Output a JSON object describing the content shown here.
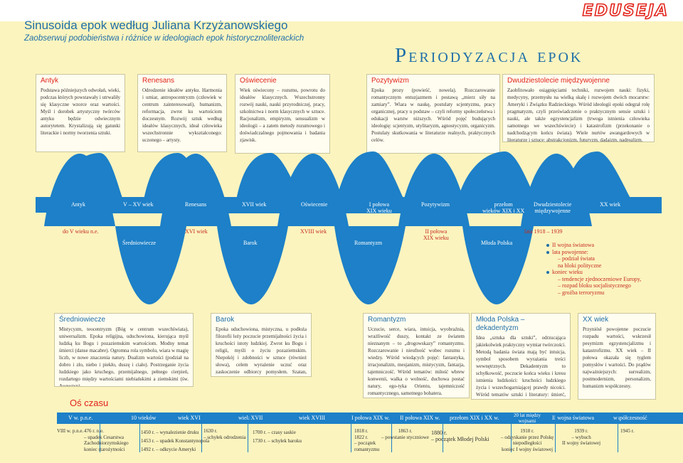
{
  "logo": {
    "text": "EDUSEJA"
  },
  "header": {
    "title": "Sinusoida epok według Juliana Krzyżanowskiego",
    "subtitle": "Zaobserwuj podobieństwa i różnice w ideologiach epok historycznoliterackich",
    "big_title": "Periodyzacja epok"
  },
  "top_boxes": [
    {
      "title": "Antyk",
      "text": "Podstawa późniejszych odwołań, wieki, podczas których powstawały i utrwaliły się klasyczne wzorce oraz wartości. Myśl i dorobek artystyczny twórców antyku będzie odwiecznym autorytetem. Krystalizują się gatunki literackie i normy tworzenia sztuki."
    },
    {
      "title": "Renesans",
      "text": "Odrodzenie ideałów antyku. Harmonia i umiar, antropocentryzm (człowiek w centrum zainteresowań), humanizm, reformacja, zwrot ku wartościom doczesnym. Rozwój sztuk według ideałów klasycznych, ideał człowieka wszechstronnie wykształconego: uczonego – artysty."
    },
    {
      "title": "Oświecenie",
      "text": "Wiek oświecony – rozumu, powrotu do ideałów klasycznych. Wszechstronny rozwój nauki, nauki przyrodniczej, pracy, szkolnictwa i norm klasycznych w sztuce. Racjonalizm, empiryzm, sensualizm w ideologii – a zatem metody rozumowego i doświadczalnego pojmowania i badania zjawisk."
    },
    {
      "title": "Pozytywizm",
      "text": "Epoka prozy (powieść, nowela). Rozczarowanie romantycznym entuzjazmem i postawą „mierz siły na zamiary”. Wiara w naukę, postulaty scjentyzmu, pracy organicznej, pracy u podstaw – czyli reformy społeczeństwa i edukacji warstw niższych. Wśród pojęć budujących ideologię: scjentyzm, utylitaryzm, agnostycyzm, organicyzm. Postulaty skutkowania w literaturze realnych, praktycznych celów."
    },
    {
      "title": "Dwudziestolecie międzywojenne",
      "text": "Zaobfitowało osiągnięciami techniki, rozwojem nauki: fizyki, medycyny, przemysłu na wielką skalę i rozwojem dwóch mocarstw: Ameryki i Związku Radzieckiego. Wśród ideologii epoki odegrał rolę pragmatyzm, czyli przeświadczenie o praktycznym sensie sztuki i nauki, ale także egzystencjalizm (trwoga istnienia człowieka samotnego we wszechświecie) i katastrofizm (przekonanie o nadchodzącym końcu świata). Wiele nurtów awangardowych w literaturze i sztuce: abstrakcjonizm, futuryzm, dadaizm, nadrealizm."
    }
  ],
  "wave_labels": {
    "crest": [
      {
        "name": "Antyk",
        "sub": ""
      },
      {
        "name": "Renesans",
        "sub": ""
      },
      {
        "name": "Oświecenie",
        "sub": ""
      },
      {
        "name": "Pozytywizm",
        "sub": ""
      },
      {
        "name": "Dwudziestolecie",
        "sub": "międzywojenne"
      }
    ],
    "dates_top": [
      "V – XV wiek",
      "XVII wiek",
      "I połowa",
      "przełom",
      "XX wiek"
    ],
    "dates_top_sub": [
      "",
      "",
      "XIX wieku",
      "wieków XIX i XX",
      ""
    ],
    "trough": [
      "Średniowiecze",
      "Barok",
      "Romantyzm",
      "Młoda Polska"
    ],
    "dates_mid": [
      "do V wieku n.e.",
      "XVI wiek",
      "XVIII wiek",
      "II połowa",
      "lata 1918 – 1939"
    ],
    "dates_mid_sub": [
      "",
      "",
      "",
      "XIX wieku",
      ""
    ]
  },
  "mloda_list": [
    {
      "t": "II wojna światowa",
      "bullet": true
    },
    {
      "t": "lata powojenne:",
      "bullet": true
    },
    {
      "t": "podział świata",
      "bullet": false
    },
    {
      "t": "na bloki polityczne",
      "bullet": false
    },
    {
      "t": "koniec wieku",
      "bullet": true
    },
    {
      "t": "tendencje zjednoczeniowe Europy,",
      "bullet": false
    },
    {
      "t": "rozpad bloku socjalistycznego",
      "bullet": false
    },
    {
      "t": "groźba terroryzmu",
      "bullet": false
    }
  ],
  "bottom_boxes": [
    {
      "title": "Średniowiecze",
      "text": "Mistycyzm, teocentryzm (Bóg w centrum wszechświata), uniwersalizm. Epoka religijna, uduchowiona, kierująca myśl ludzką ku Bogu i pozaziemskim wartościom. Modny temat śmierci (danse macabre). Ogromna rola symbolu, wiara w magię liczb, w nowe znaczenia natury. Dualizm wartości (podział na dobro i zło, niebo i piekło, duszę i ciało). Postrzeganie życia ludzkiego jako kruchego, przemijalnego, pełnego cierpień, rozdartego między wartościami niebiańskimi a ziemskimi (św. Augustyn)."
    },
    {
      "title": "Barok",
      "text": "Epoka uduchowiona, mistyczna, u podłoża filozofii leży poczucie przemijalności życia i kruchości istoty ludzkiej. Zwrot ku Bogu i religii, myśli o życiu pozaziemskim. Niepokój i zdobności w sztuce (również słowa), celem wyrażenie uczuć oraz zaskoczenie odbiorcy pomysłem. Szatan, piekło, śmierć – typowe motywy sztuki."
    },
    {
      "title": "Romantyzm",
      "text": "Uczucie, serce, wiara, intuicja, wyobraźnia, wrażliwość duszy, kontakt ze światem nieznanym – to „drogowskazy” romantyzmu. Rozczarowanie i nieufność wobec rozumu i wiedzy. Wśród wiodących pojęć: fantastyka, irracjonalizm, mesjanizm, mistycyzm, fantazja, tajemniczość. Wśród tematów: miłość wbrew konwenii, walka o wolność, duchowa postać natury, ego-tyka Orientu, tajemniczość romantycznego, samotnego bohatera."
    },
    {
      "title": "Młoda Polska – dekadentyzm",
      "text": "Idea „sztuka dla sztuki”, odrzucająca jakiekolwiek praktyczny wymiar twórczości. Metodą badania świata mają być intuicja, symbol sposobem wyrażania treści wewnętrznych. Dekadentyzm to schyłkowość, poczucie końca wieku i kresu istnienia ludzkości: kruchości ludzkiego życia i wszechogarniającej prawdy nicości. Wśród tematów sztuki i literatury: śmierć, szatan, koniec wieku, ból, pesymizm, kryzys epoki, upadek dotychczasowej kultury, wyobcowany poeta – artysta. Pogarda dla mieszczańskiego stylu życia. Zbuntowany poeta i wielki dramatu na wzór romantyków."
    },
    {
      "title": "XX wiek",
      "text": "Przyniósł powojenne poczucie rozpadu wartości, wskrzesił pesymizm egzystencjalizmu i katastrofizmu. XX wiek – II połowa okazała się tyglem pomysłów i wartości. Do prądów najważniejszych: surrealizm, postmodernizm, personalizm, humanizm współczesny."
    }
  ],
  "timeline": {
    "title": "Oś czasu",
    "bar": [
      "V w. p.n.e.",
      "10 wieków",
      "wiek XVI",
      "wiek XVII",
      "wiek XVIII",
      "I połowa XIX w.",
      "II połowa XIX w.",
      "przełom XIX i XX w.",
      "20 lat między wojnami",
      "II wojna światowa",
      "współczesność"
    ],
    "events": [
      "VIII w. p.n.e.",
      "476 r. n.e.",
      "– upadek Cesarstwa",
      "Zachodniorzymskiego",
      "koniec starożytności",
      "1450 r. – wynalezienie druku",
      "1453 r. – upadek Konstantynopola",
      "1492 r. – odkrycie Ameryki",
      "1630 r.",
      "– schyłek odrodzenia",
      "1700 r. – czasy saskie",
      "1730 r. – schyłek baroku",
      "1818 r.",
      "1822 r.",
      "– początek",
      "romantyzmu",
      "1863 r.",
      "– powstanie styczniowe",
      "1880 r.",
      "– początek Młodej Polski",
      "1918 r.",
      "– odzyskanie przez Polskę",
      "niepodległości",
      "koniec I wojny światowej",
      "1939 r.",
      "– wybuch",
      "II wojny światowej",
      "1945 r."
    ]
  }
}
